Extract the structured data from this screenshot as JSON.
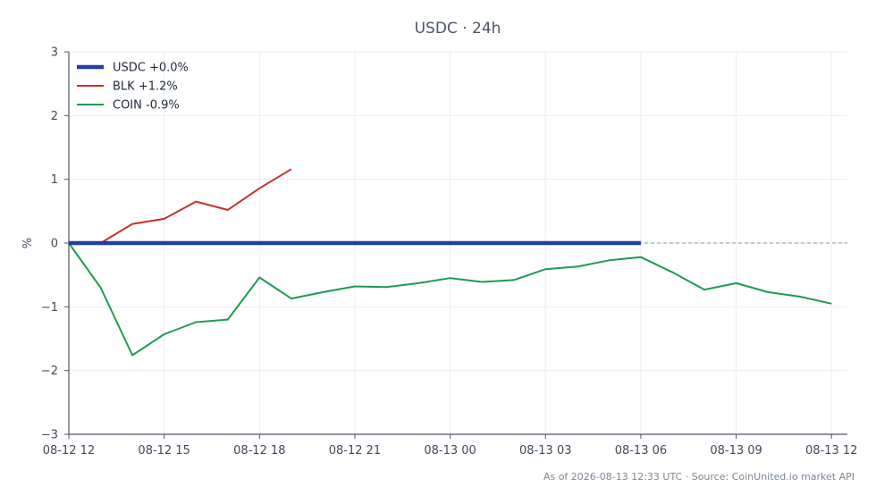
{
  "chart_data": {
    "type": "line",
    "title": "USDC · 24h",
    "ylabel": "%",
    "xlabel": "",
    "ylim": [
      -3,
      3
    ],
    "yticks": [
      3,
      2,
      1,
      0,
      -1,
      -2,
      -3
    ],
    "ytick_labels": [
      "3",
      "2",
      "1",
      "0",
      "−1",
      "−2",
      "−3"
    ],
    "xlim": [
      12,
      36.5
    ],
    "xticks": [
      12,
      15,
      18,
      21,
      24,
      27,
      30,
      33,
      36
    ],
    "xtick_labels": [
      "08-12 12",
      "08-12 15",
      "08-12 18",
      "08-12 21",
      "08-13 00",
      "08-13 03",
      "08-13 06",
      "08-13 09",
      "08-13 12"
    ],
    "grid": true,
    "zero_line": true,
    "legend": "top-left",
    "series": [
      {
        "name": "USDC +0.0%",
        "color": "#1f3fa0",
        "width": 4.5,
        "x": [
          12,
          30
        ],
        "y": [
          0.0,
          0.0
        ]
      },
      {
        "name": "BLK +1.2%",
        "color": "#c53030",
        "width": 2,
        "x": [
          13,
          14,
          15,
          16,
          17,
          18,
          19
        ],
        "y": [
          0.0,
          0.3,
          0.38,
          0.65,
          0.52,
          0.86,
          1.16
        ]
      },
      {
        "name": "COIN -0.9%",
        "color": "#1e9b4f",
        "width": 2,
        "x": [
          12,
          13,
          14,
          15,
          16,
          17,
          18,
          19,
          20,
          21,
          22,
          23,
          24,
          25,
          26,
          27,
          28,
          29,
          30,
          31,
          32,
          33,
          34,
          35,
          36
        ],
        "y": [
          0.0,
          -0.7,
          -1.76,
          -1.43,
          -1.24,
          -1.2,
          -0.54,
          -0.87,
          -0.77,
          -0.68,
          -0.69,
          -0.63,
          -0.55,
          -0.61,
          -0.58,
          -0.41,
          -0.37,
          -0.27,
          -0.22,
          -0.46,
          -0.73,
          -0.63,
          -0.77,
          -0.84,
          -0.95
        ]
      }
    ]
  },
  "footer": {
    "text": "As of 2026-08-13 12:33 UTC · Source: CoinUnited.io market API"
  }
}
